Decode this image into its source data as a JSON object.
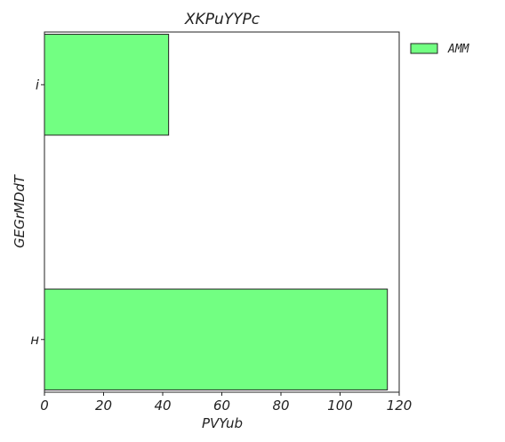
{
  "chart_data": {
    "type": "bar",
    "orientation": "horizontal",
    "title": "XKPuYYPc",
    "xlabel": "PVYub",
    "ylabel": "GEGrMDdT",
    "categories": [
      "i",
      "ʜ"
    ],
    "series": [
      {
        "name": "AMM",
        "color": "#72ff82",
        "values": [
          42,
          116
        ]
      }
    ],
    "xlim": [
      0,
      120
    ],
    "xticks": [
      0,
      20,
      40,
      60,
      80,
      100,
      120
    ],
    "grid": false,
    "legend_position": "outside-right-top"
  }
}
